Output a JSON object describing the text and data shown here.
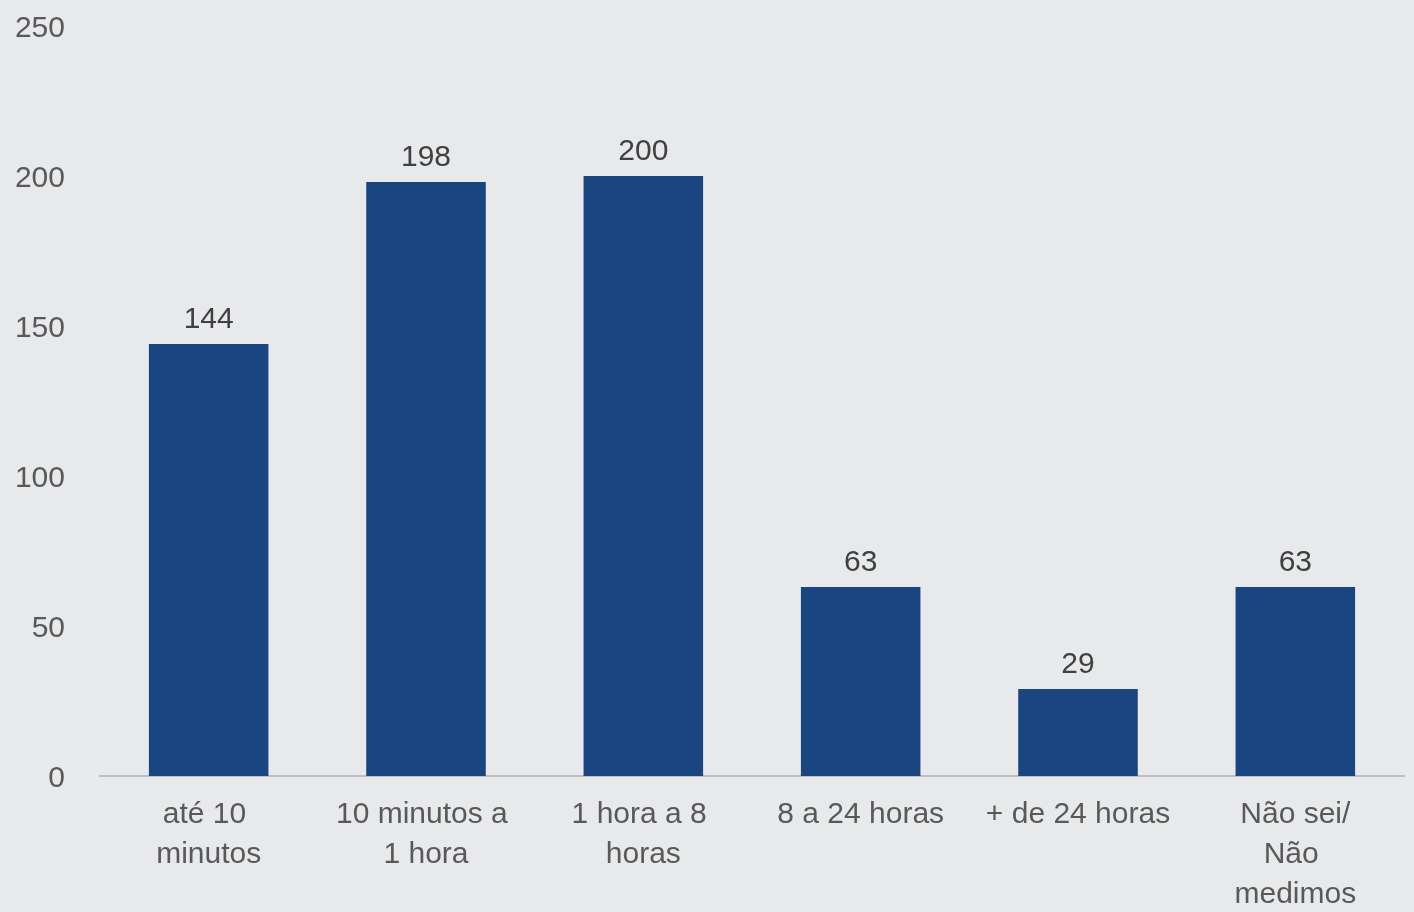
{
  "chart_data": {
    "type": "bar",
    "categories": [
      "até 10 minutos",
      "10 minutos a 1 hora",
      "1 hora a 8 horas",
      "8 a 24 horas",
      "+ de 24 horas",
      "Não sei/Não medimos"
    ],
    "values": [
      144,
      198,
      200,
      63,
      29,
      63
    ],
    "color": "#194680",
    "ylim": [
      0,
      250
    ],
    "yticks": [
      0,
      50,
      100,
      150,
      200,
      250
    ],
    "grid": false,
    "data_labels": true
  }
}
